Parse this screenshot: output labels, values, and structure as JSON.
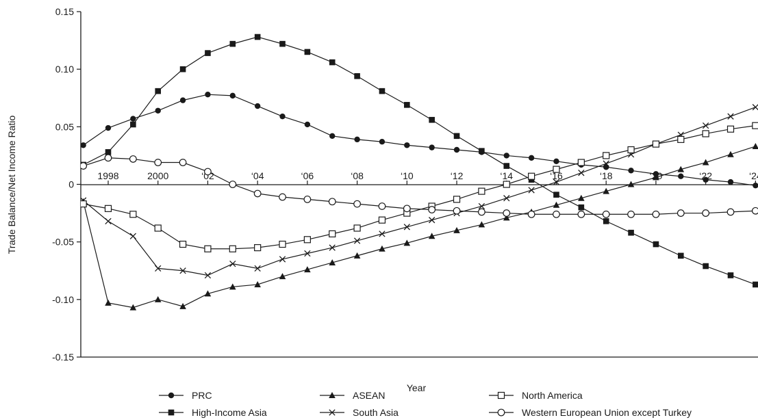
{
  "chart_data": {
    "type": "line",
    "title": "",
    "xlabel": "Year",
    "ylabel": "Trade Balance/Net Income Ratio",
    "x": [
      1997,
      1998,
      1999,
      2000,
      2001,
      2002,
      2003,
      2004,
      2005,
      2006,
      2007,
      2008,
      2009,
      2010,
      2011,
      2012,
      2013,
      2014,
      2015,
      2016,
      2017,
      2018,
      2019,
      2020,
      2021,
      2022,
      2023,
      2024
    ],
    "xlim": [
      1996.9,
      2024.1
    ],
    "ylim": [
      -0.15,
      0.15
    ],
    "y_ticks": [
      "0.15",
      "0.10",
      "0.05",
      "0",
      "-0.05",
      "-0.10",
      "-0.15"
    ],
    "x_ticks": [
      {
        "x": 1998,
        "label": "1998"
      },
      {
        "x": 2000,
        "label": "2000"
      },
      {
        "x": 2002,
        "label": "‘02"
      },
      {
        "x": 2004,
        "label": "‘04"
      },
      {
        "x": 2006,
        "label": "‘06"
      },
      {
        "x": 2008,
        "label": "‘08"
      },
      {
        "x": 2010,
        "label": "‘10"
      },
      {
        "x": 2012,
        "label": "‘12"
      },
      {
        "x": 2014,
        "label": "‘14"
      },
      {
        "x": 2016,
        "label": "‘16"
      },
      {
        "x": 2018,
        "label": "‘18"
      },
      {
        "x": 2020,
        "label": "‘20"
      },
      {
        "x": 2022,
        "label": "‘22"
      },
      {
        "x": 2024,
        "label": "‘24"
      }
    ],
    "grid": false,
    "legend_position": "bottom",
    "series": [
      {
        "name": "PRC",
        "marker": "filled-circle",
        "values": [
          0.034,
          0.049,
          0.057,
          0.064,
          0.073,
          0.078,
          0.077,
          0.068,
          0.059,
          0.052,
          0.042,
          0.039,
          0.037,
          0.034,
          0.032,
          0.03,
          0.028,
          0.025,
          0.023,
          0.02,
          0.017,
          0.015,
          0.012,
          0.009,
          0.007,
          0.004,
          0.002,
          -0.001
        ]
      },
      {
        "name": "High-Income Asia",
        "marker": "filled-square",
        "values": [
          0.017,
          0.028,
          0.052,
          0.081,
          0.1,
          0.114,
          0.122,
          0.128,
          0.122,
          0.115,
          0.106,
          0.094,
          0.081,
          0.069,
          0.056,
          0.042,
          0.029,
          0.016,
          0.004,
          -0.009,
          -0.02,
          -0.032,
          -0.042,
          -0.052,
          -0.062,
          -0.071,
          -0.079,
          -0.087
        ]
      },
      {
        "name": "ASEAN",
        "marker": "filled-triangle",
        "values": [
          -0.015,
          -0.103,
          -0.107,
          -0.1,
          -0.106,
          -0.095,
          -0.089,
          -0.087,
          -0.08,
          -0.074,
          -0.068,
          -0.062,
          -0.056,
          -0.051,
          -0.045,
          -0.04,
          -0.035,
          -0.029,
          -0.024,
          -0.018,
          -0.012,
          -0.006,
          0.0,
          0.006,
          0.013,
          0.019,
          0.026,
          0.033
        ]
      },
      {
        "name": "South Asia",
        "marker": "cross",
        "values": [
          -0.014,
          -0.032,
          -0.045,
          -0.073,
          -0.075,
          -0.079,
          -0.069,
          -0.073,
          -0.065,
          -0.06,
          -0.055,
          -0.049,
          -0.043,
          -0.037,
          -0.031,
          -0.025,
          -0.019,
          -0.012,
          -0.005,
          0.002,
          0.01,
          0.018,
          0.026,
          0.035,
          0.043,
          0.051,
          0.059,
          0.067
        ]
      },
      {
        "name": "North America",
        "marker": "open-square",
        "values": [
          -0.017,
          -0.021,
          -0.026,
          -0.038,
          -0.052,
          -0.056,
          -0.056,
          -0.055,
          -0.052,
          -0.048,
          -0.043,
          -0.038,
          -0.031,
          -0.025,
          -0.019,
          -0.013,
          -0.006,
          0.0,
          0.007,
          0.013,
          0.019,
          0.025,
          0.03,
          0.035,
          0.039,
          0.044,
          0.048,
          0.051
        ]
      },
      {
        "name": "Western European Union except Turkey",
        "marker": "open-circle",
        "values": [
          0.016,
          0.023,
          0.022,
          0.019,
          0.019,
          0.011,
          0.0,
          -0.008,
          -0.011,
          -0.013,
          -0.015,
          -0.017,
          -0.019,
          -0.021,
          -0.022,
          -0.023,
          -0.024,
          -0.025,
          -0.026,
          -0.026,
          -0.026,
          -0.026,
          -0.026,
          -0.026,
          -0.025,
          -0.025,
          -0.024,
          -0.023
        ]
      }
    ]
  }
}
